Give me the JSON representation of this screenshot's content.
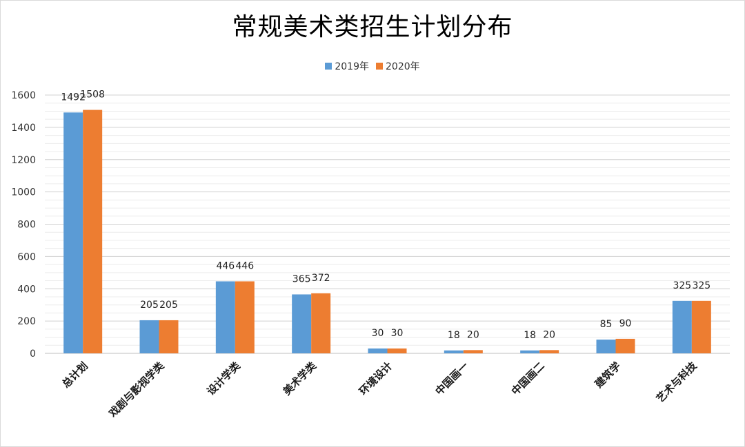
{
  "chart_data": {
    "type": "bar",
    "title": "常规美术类招生计划分布",
    "categories": [
      "总计划",
      "戏剧与影视学类",
      "设计学类",
      "美术学类",
      "环境设计",
      "中国画一",
      "中国画二",
      "建筑学",
      "艺术与科技"
    ],
    "series": [
      {
        "name": "2019年",
        "color": "#5b9bd5",
        "values": [
          1492,
          205,
          446,
          365,
          30,
          18,
          18,
          85,
          325
        ]
      },
      {
        "name": "2020年",
        "color": "#ed7d31",
        "values": [
          1508,
          205,
          446,
          372,
          30,
          20,
          20,
          90,
          325
        ]
      }
    ],
    "ylim": [
      0,
      1600
    ],
    "yticks": [
      0,
      200,
      400,
      600,
      800,
      1000,
      1200,
      1400,
      1600
    ],
    "grid": true,
    "data_labels": true,
    "legend_position": "top-center",
    "category_label_rotation": "diagonal"
  }
}
